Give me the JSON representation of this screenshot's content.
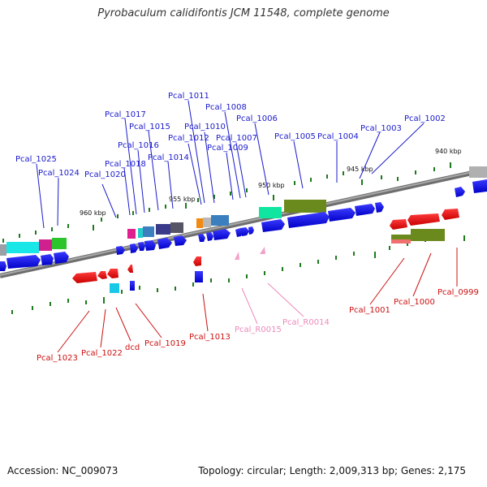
{
  "title": "Pyrobaculum calidifontis JCM 11548, complete genome",
  "footer": {
    "accession": "Accession: NC_009073",
    "summary": "Topology: circular; Length: 2,009,313 bp; Genes: 2,175"
  },
  "scale_labels": [
    "960 kbp",
    "955 kbp",
    "950 kbp",
    "945 kbp",
    "940 kbp"
  ],
  "colors": {
    "forward_label": "#1a1acc",
    "reverse_label": "#cc1111",
    "rna_label": "#ee88bb",
    "backbone": "#888888",
    "cds": "#0000ee",
    "reverse_cds": "#ee0000",
    "tick": "#1e7a1e"
  },
  "forward_genes": [
    "Pcal_1025",
    "Pcal_1024",
    "Pcal_1020",
    "Pcal_1018",
    "Pcal_1017",
    "Pcal_1016",
    "Pcal_1015",
    "Pcal_1014",
    "Pcal_1012",
    "Pcal_1011",
    "Pcal_1010",
    "Pcal_1009",
    "Pcal_1008",
    "Pcal_1007",
    "Pcal_1006",
    "Pcal_1005",
    "Pcal_1004",
    "Pcal_1003",
    "Pcal_1002"
  ],
  "reverse_genes": [
    "Pcal_1023",
    "Pcal_1022",
    "dcd",
    "Pcal_1019",
    "Pcal_1013",
    "Pcal_1001",
    "Pcal_1000",
    "Pcal_0999"
  ],
  "rna_genes": [
    "Pcal_R0015",
    "Pcal_R0014"
  ]
}
